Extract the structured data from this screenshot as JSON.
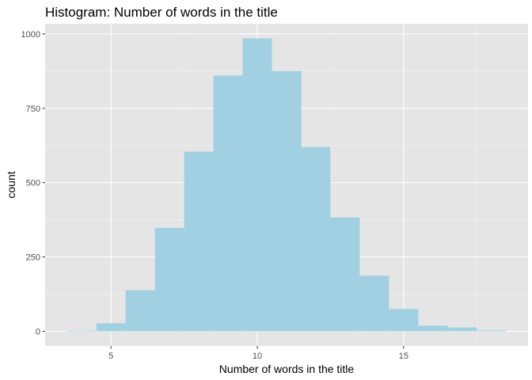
{
  "chart_data": {
    "type": "bar",
    "subtype": "histogram",
    "title": "Histogram: Number of words in the title",
    "xlabel": "Number of words in the title",
    "ylabel": "count",
    "bins": [
      {
        "x0": 3.5,
        "x1": 4.5,
        "count": 2
      },
      {
        "x0": 4.5,
        "x1": 5.5,
        "count": 27
      },
      {
        "x0": 5.5,
        "x1": 6.5,
        "count": 138
      },
      {
        "x0": 6.5,
        "x1": 7.5,
        "count": 348
      },
      {
        "x0": 7.5,
        "x1": 8.5,
        "count": 604
      },
      {
        "x0": 8.5,
        "x1": 9.5,
        "count": 860
      },
      {
        "x0": 9.5,
        "x1": 10.5,
        "count": 985
      },
      {
        "x0": 10.5,
        "x1": 11.5,
        "count": 875
      },
      {
        "x0": 11.5,
        "x1": 12.5,
        "count": 620
      },
      {
        "x0": 12.5,
        "x1": 13.5,
        "count": 383
      },
      {
        "x0": 13.5,
        "x1": 14.5,
        "count": 187
      },
      {
        "x0": 14.5,
        "x1": 15.5,
        "count": 75
      },
      {
        "x0": 15.5,
        "x1": 16.5,
        "count": 19
      },
      {
        "x0": 16.5,
        "x1": 17.5,
        "count": 13
      },
      {
        "x0": 17.5,
        "x1": 18.5,
        "count": 3
      }
    ],
    "xlim": [
      2.75,
      19.25
    ],
    "ylim": [
      -49.25,
      1034.25
    ],
    "x_ticks": [
      5,
      10,
      15
    ],
    "y_ticks": [
      0,
      250,
      500,
      750,
      1000
    ],
    "grid": true,
    "legend": "none",
    "colors": {
      "bar": "#a0d0e1",
      "panel_background": "#e5e5e5",
      "grid_major": "#ffffff",
      "grid_minor": "#f2f2f2"
    }
  }
}
